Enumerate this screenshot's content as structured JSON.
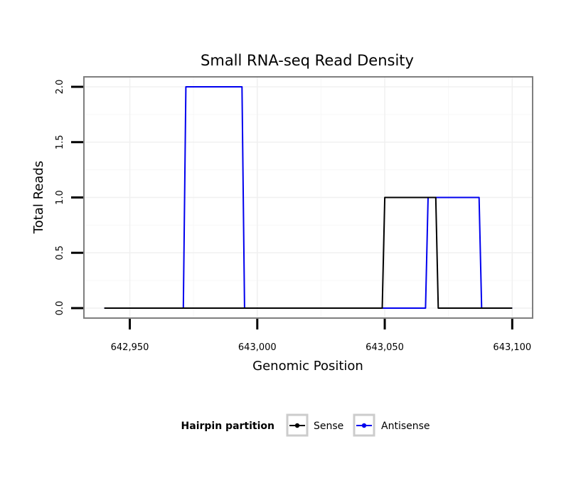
{
  "chart_data": {
    "type": "line",
    "title": "Small RNA-seq Read Density",
    "xlabel": "Genomic Position",
    "ylabel": "Total Reads",
    "xlim": [
      642932,
      643108
    ],
    "ylim": [
      -0.09,
      2.09
    ],
    "x_ticks": [
      642950,
      643000,
      643050,
      643100
    ],
    "x_tick_labels": [
      "642,950",
      "643,000",
      "643,050",
      "643,100"
    ],
    "y_ticks": [
      0.0,
      0.5,
      1.0,
      1.5,
      2.0
    ],
    "y_tick_labels": [
      "0.0",
      "0.5",
      "1.0",
      "1.5",
      "2.0"
    ],
    "grid": true,
    "legend": {
      "title": "Hairpin partition",
      "position": "bottom"
    },
    "series": [
      {
        "name": "Sense",
        "color": "#000000",
        "x": [
          642940,
          643049,
          643050,
          643070,
          643071,
          643100
        ],
        "y": [
          0,
          0,
          1,
          1,
          0,
          0
        ]
      },
      {
        "name": "Antisense",
        "color": "#0000ee",
        "x": [
          642940,
          642971,
          642972,
          642994,
          642995,
          643049,
          643066,
          643067,
          643087,
          643088,
          643100
        ],
        "y": [
          0,
          0,
          2,
          2,
          0,
          0,
          0,
          1,
          1,
          0,
          0
        ]
      }
    ]
  }
}
